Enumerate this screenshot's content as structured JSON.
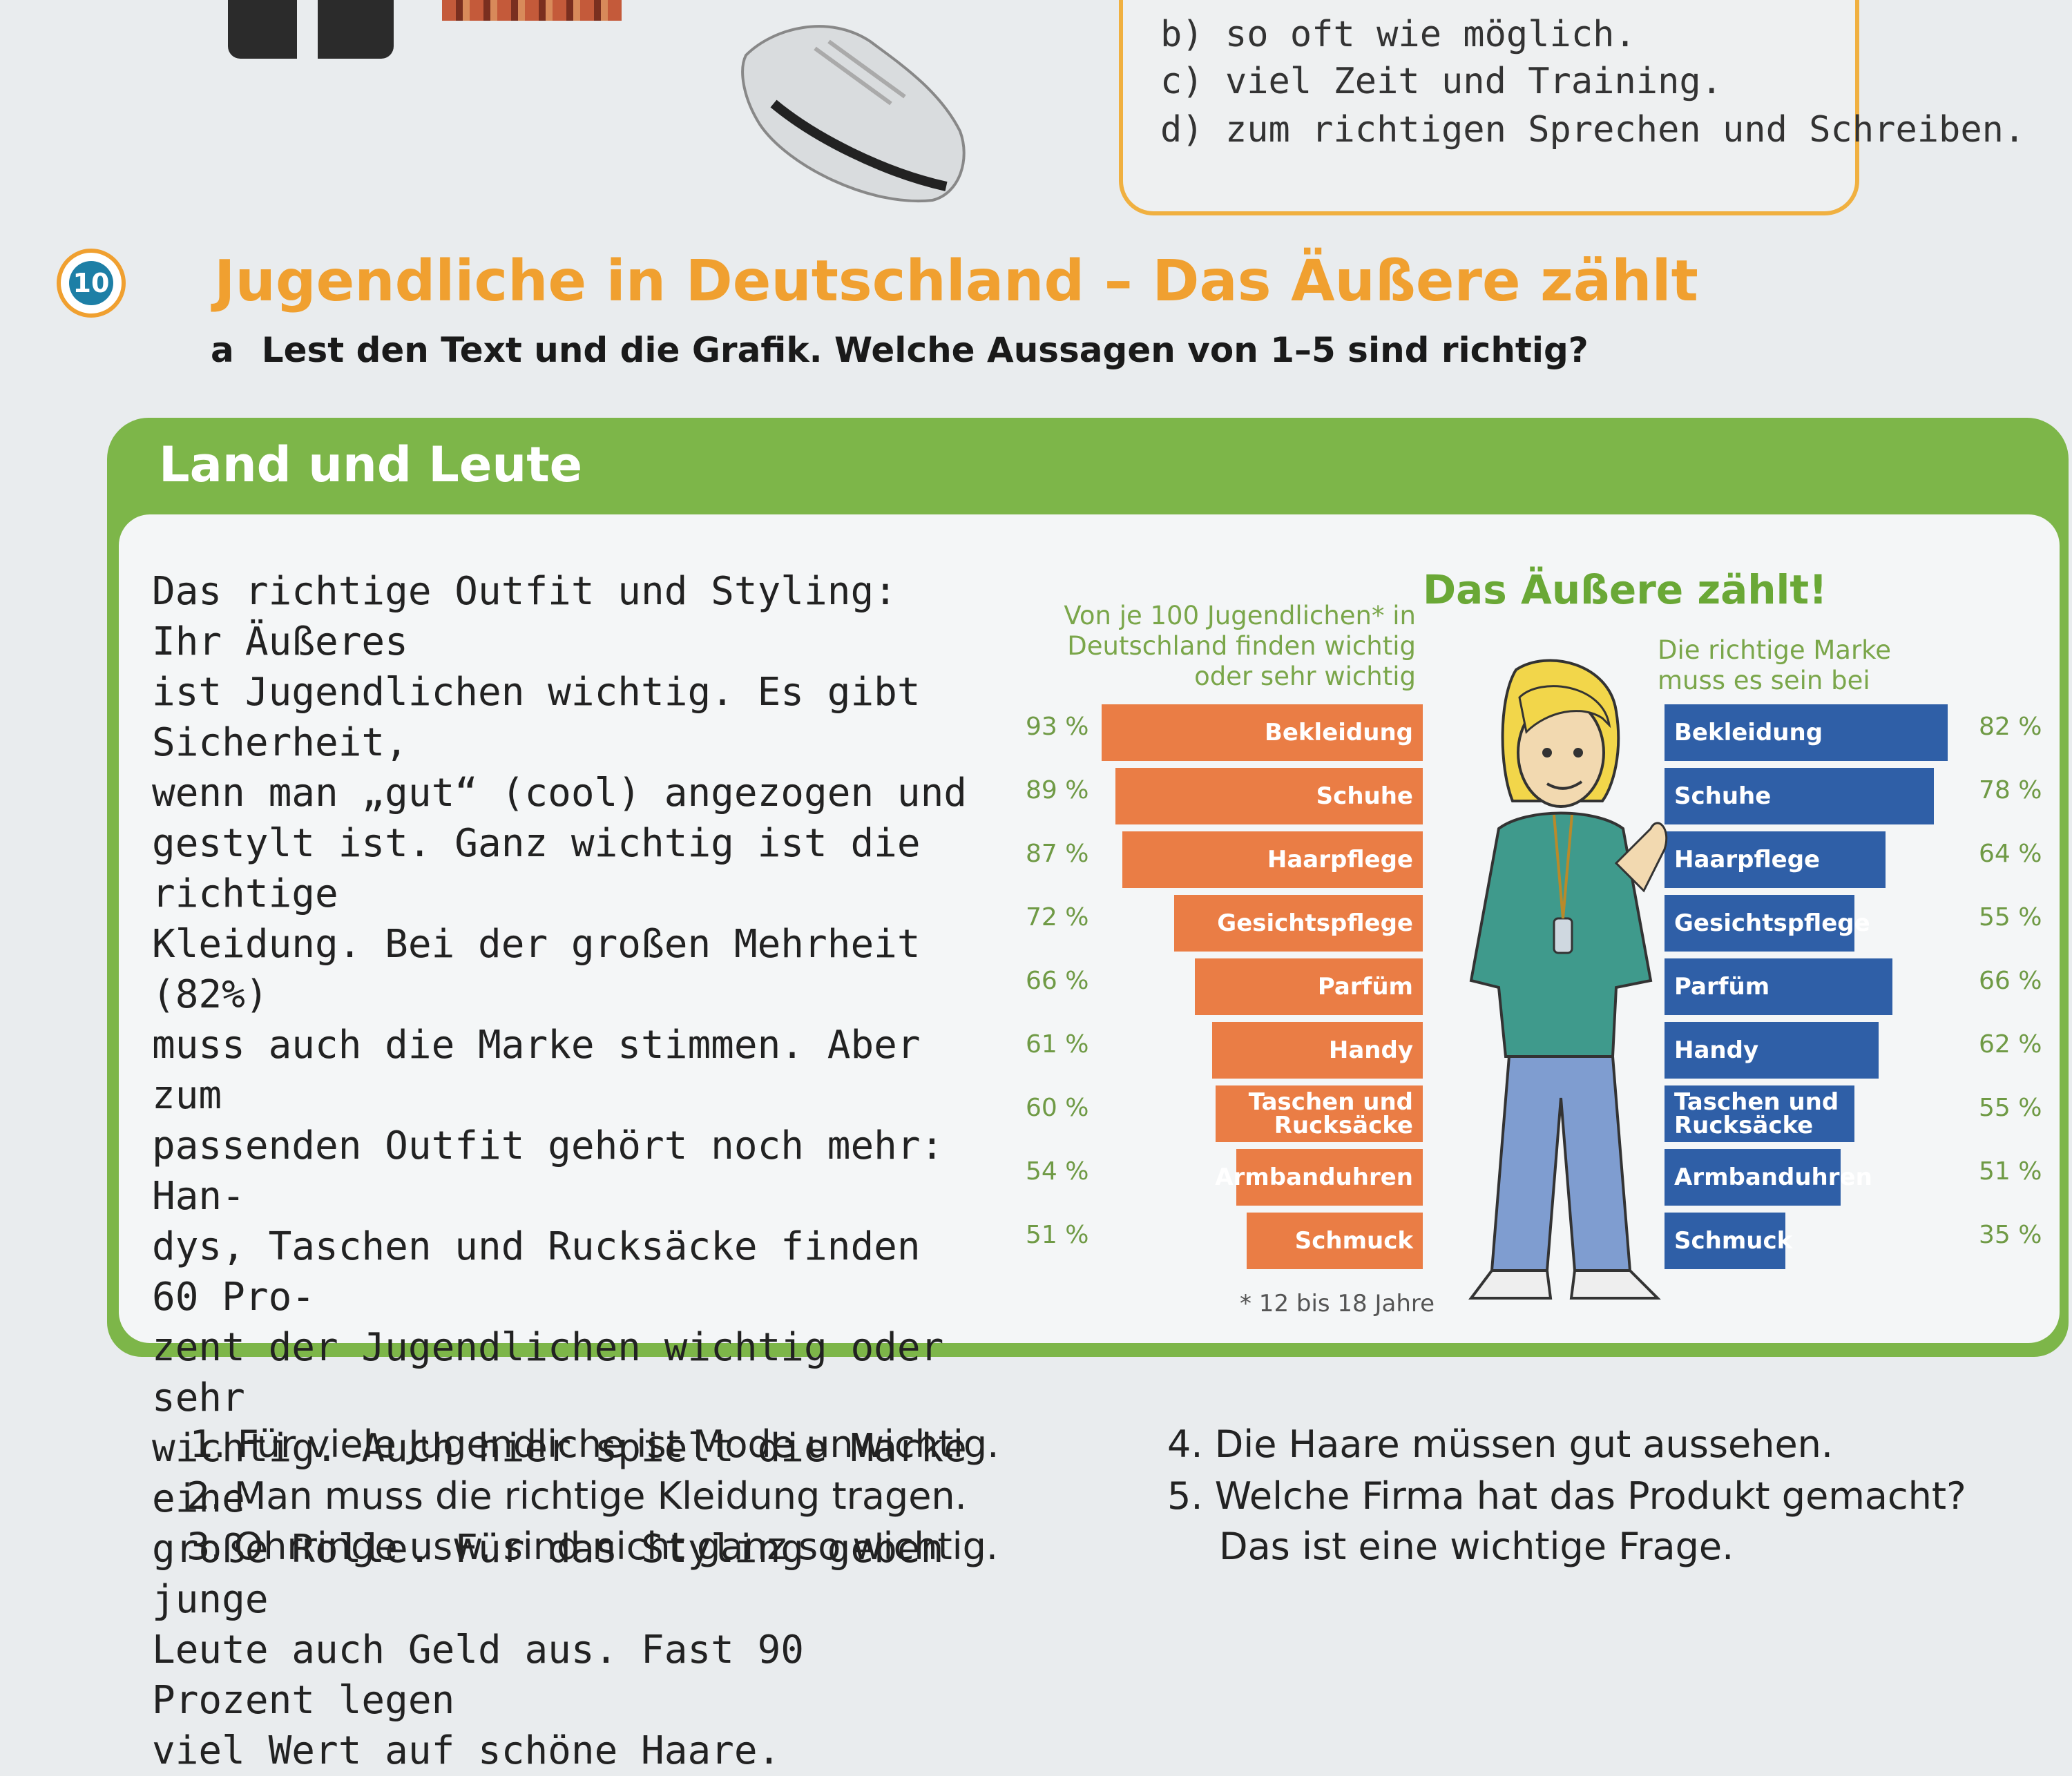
{
  "quiz": {
    "options": [
      {
        "letter": "b)",
        "text": "so oft wie möglich."
      },
      {
        "letter": "c)",
        "text": "viel Zeit und Training."
      },
      {
        "letter": "d)",
        "text": "zum richtigen Sprechen und Schreiben."
      }
    ]
  },
  "exercise": {
    "number": "10",
    "title": "Jugendliche in Deutschland – Das Äußere zählt",
    "task_letter": "a",
    "instruction": "Lest den Text und die Grafik. Welche Aussagen von 1–5 sind richtig?"
  },
  "panel": {
    "title": "Land und Leute",
    "text_lines": [
      "Das richtige Outfit und Styling: Ihr Äußeres",
      "ist Jugendlichen wichtig. Es gibt Sicherheit,",
      "wenn man „gut“ (cool) angezogen und",
      "gestylt ist. Ganz wichtig ist die richtige",
      "Kleidung. Bei der großen Mehrheit (82%)",
      "muss auch die Marke stimmen. Aber zum",
      "passenden Outfit gehört noch mehr: Han-",
      "dys, Taschen und Rucksäcke finden 60 Pro-",
      "zent der Jugendlichen wichtig oder sehr",
      "wichtig. Auch hier spielt die Marke eine",
      "große Rolle. Für das Styling geben junge",
      "Leute auch Geld aus. Fast 90 Prozent legen",
      "viel Wert auf schöne Haare."
    ]
  },
  "chart_data": {
    "type": "bar",
    "title": "Das Äußere zählt!",
    "categories": [
      "Bekleidung",
      "Schuhe",
      "Haarpflege",
      "Gesichtspflege",
      "Parfüm",
      "Handy",
      "Taschen und Rucksäcke",
      "Armbanduhren",
      "Schmuck"
    ],
    "series": [
      {
        "name": "Von je 100 Jugendlichen* in Deutschland finden wichtig oder sehr wichtig",
        "values": [
          93,
          89,
          87,
          72,
          66,
          61,
          60,
          54,
          51
        ],
        "color": "#ea7d45"
      },
      {
        "name": "Die richtige Marke muss es sein bei",
        "values": [
          82,
          78,
          64,
          55,
          66,
          62,
          55,
          51,
          35
        ],
        "color": "#2f5fa7"
      }
    ],
    "pct_labels_left": [
      "93 %",
      "89 %",
      "87 %",
      "72 %",
      "66 %",
      "61 %",
      "60 %",
      "54 %",
      "51 %"
    ],
    "pct_labels_right": [
      "82 %",
      "78 %",
      "64 %",
      "55 %",
      "66 %",
      "62 %",
      "55 %",
      "51 %",
      "35 %"
    ],
    "footnote": "* 12 bis 18 Jahre",
    "orientation": "horizontal, mirrored"
  },
  "questions": [
    {
      "num": "1.",
      "text": "Für viele Jugendliche ist Mode unwichtig."
    },
    {
      "num": "2.",
      "text": "Man muss die richtige Kleidung tragen."
    },
    {
      "num": "3.",
      "text": "Ohrringe usw. sind nicht ganz so wichtig."
    },
    {
      "num": "4.",
      "text": "Die Haare müssen gut aussehen."
    },
    {
      "num": "5.",
      "text": "Welche Firma hat das Produkt gemacht?"
    },
    {
      "num": "",
      "text": "Das ist eine wichtige Frage."
    }
  ]
}
